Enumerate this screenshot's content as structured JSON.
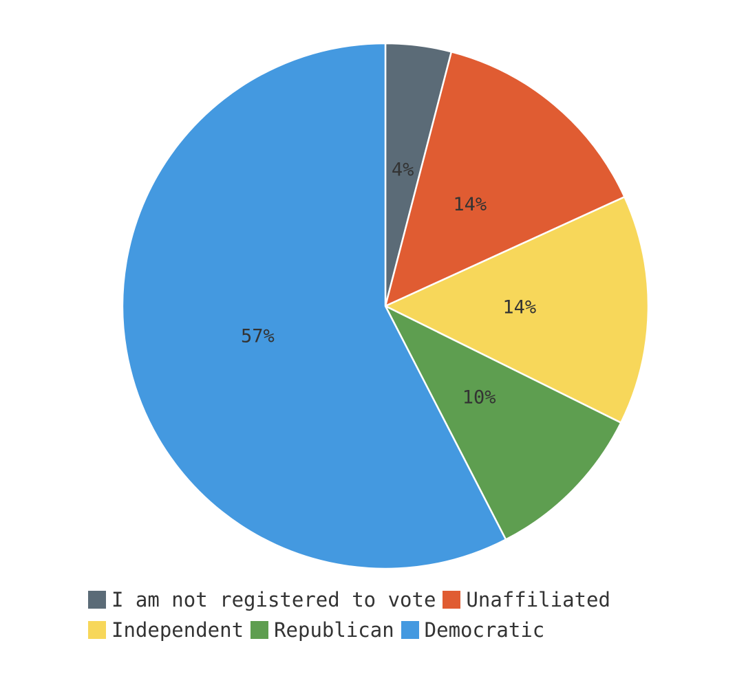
{
  "chart_data": {
    "type": "pie",
    "title": "",
    "categories": [
      "I am not registered to vote",
      "Unaffiliated",
      "Independent",
      "Republican",
      "Democratic"
    ],
    "values": [
      4,
      14,
      14,
      10,
      57
    ],
    "data_labels": [
      "4%",
      "14%",
      "14%",
      "10%",
      "57%"
    ],
    "colors": [
      "#5b6b77",
      "#e05c32",
      "#f7d75a",
      "#5e9e50",
      "#4499e0"
    ],
    "legend_position": "bottom",
    "start_angle": "top",
    "direction": "clockwise"
  }
}
